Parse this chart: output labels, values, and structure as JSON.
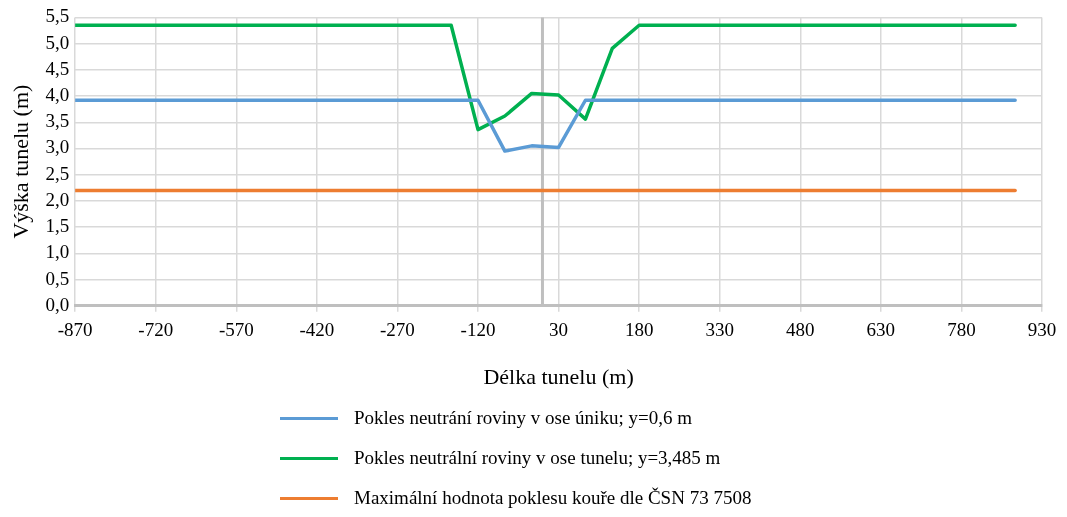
{
  "chart_data": {
    "type": "line",
    "xlabel": "Délka tunelu (m)",
    "ylabel": "Výška tunelu (m)",
    "xlim": [
      -870,
      930
    ],
    "xticks": [
      {
        "value": -870,
        "label": "-870"
      },
      {
        "value": -720,
        "label": "-720"
      },
      {
        "value": -570,
        "label": "-570"
      },
      {
        "value": -420,
        "label": "-420"
      },
      {
        "value": -270,
        "label": "-270"
      },
      {
        "value": -120,
        "label": "-120"
      },
      {
        "value": 30,
        "label": "30"
      },
      {
        "value": 180,
        "label": "180"
      },
      {
        "value": 330,
        "label": "330"
      },
      {
        "value": 480,
        "label": "480"
      },
      {
        "value": 630,
        "label": "630"
      },
      {
        "value": 780,
        "label": "780"
      },
      {
        "value": 930,
        "label": "930"
      }
    ],
    "ylim": [
      0,
      5.5
    ],
    "yticks": [
      {
        "value": 0,
        "label": "0,0"
      },
      {
        "value": 0.5,
        "label": "0,5"
      },
      {
        "value": 1,
        "label": "1,0"
      },
      {
        "value": 1.5,
        "label": "1,5"
      },
      {
        "value": 2,
        "label": "2,0"
      },
      {
        "value": 2.5,
        "label": "2,5"
      },
      {
        "value": 3,
        "label": "3,0"
      },
      {
        "value": 3.5,
        "label": "3,5"
      },
      {
        "value": 4,
        "label": "4,0"
      },
      {
        "value": 4.5,
        "label": "4,5"
      },
      {
        "value": 5,
        "label": "5,0"
      },
      {
        "value": 5.5,
        "label": "5,5"
      }
    ],
    "grid": true,
    "legend": "bottom",
    "marker": "none",
    "ref_lines": [
      {
        "axis": "x",
        "value": 0,
        "color": "#bfbfbf"
      }
    ],
    "series": [
      {
        "name": "Pokles neutrání roviny v ose úniku; y=0,6 m",
        "color": "#5b9bd5",
        "x": [
          -870,
          -120,
          -70,
          -20,
          30,
          80,
          880
        ],
        "values": [
          3.92,
          3.92,
          2.95,
          3.05,
          3.02,
          3.92,
          3.92
        ]
      },
      {
        "name": "Pokles neutrální roviny v ose tunelu; y=3,485 m",
        "color": "#00b050",
        "x": [
          -870,
          -170,
          -120,
          -70,
          -20,
          30,
          80,
          130,
          180,
          880
        ],
        "values": [
          5.35,
          5.35,
          3.36,
          3.62,
          4.05,
          4.02,
          3.56,
          4.91,
          5.35,
          5.35
        ]
      },
      {
        "name": "Maximální hodnota poklesu kouře dle ČSN 73 7508",
        "color": "#ed7d31",
        "x": [
          -870,
          880
        ],
        "values": [
          2.2,
          2.2
        ]
      }
    ]
  }
}
